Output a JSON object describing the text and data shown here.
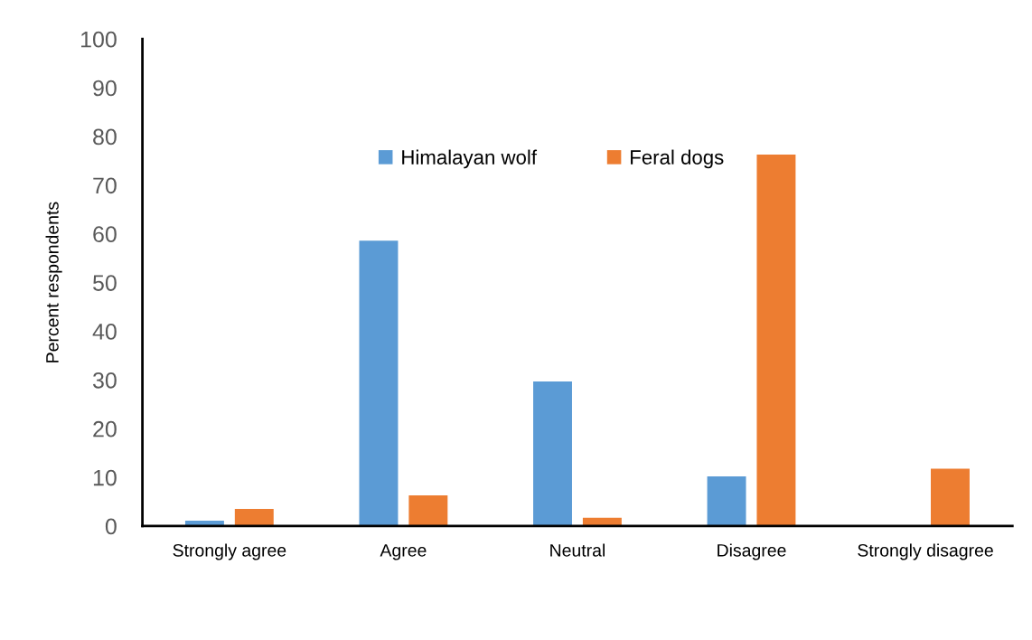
{
  "chart_data": {
    "type": "bar",
    "ylabel": "Percent respondents",
    "categories": [
      "Strongly agree",
      "Agree",
      "Neutral",
      "Disagree",
      "Strongly disagree"
    ],
    "series": [
      {
        "name": "Himalayan wolf",
        "color": "#5b9bd5",
        "values": [
          1.1,
          58.6,
          29.7,
          10.2,
          0
        ]
      },
      {
        "name": "Feral dogs",
        "color": "#ed7d31",
        "values": [
          3.5,
          6.3,
          1.7,
          76.3,
          11.8
        ]
      }
    ],
    "ylim": [
      0,
      100
    ],
    "yticks": [
      0,
      10,
      20,
      30,
      40,
      50,
      60,
      70,
      80,
      90,
      100
    ],
    "grid": false,
    "legend": "top"
  }
}
